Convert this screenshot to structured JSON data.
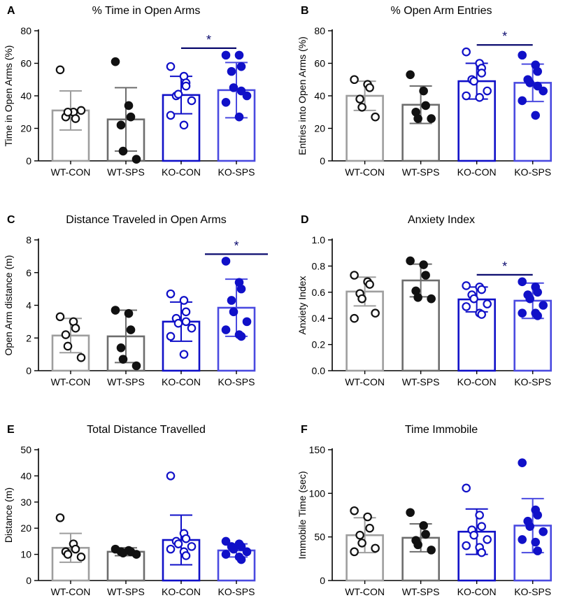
{
  "figure": {
    "categories": [
      "WT-CON",
      "WT-SPS",
      "KO-CON",
      "KO-SPS"
    ],
    "group_colors": [
      "#9e9e9e",
      "#6d6d6d",
      "#1010c8",
      "#4a4ae0"
    ],
    "dot_colors": [
      "#111111",
      "#111111",
      "#1010c8",
      "#1010c8"
    ],
    "dot_fill": [
      "open",
      "filled",
      "open",
      "filled"
    ],
    "sig_color": "#0a0a6e"
  },
  "chart_data": [
    {
      "panel": "A",
      "type": "bar",
      "title": "% Time in Open Arms",
      "ylabel": "Time in Open Arms (%)",
      "ylim": [
        0,
        80
      ],
      "yticks": [
        0,
        20,
        40,
        60,
        80
      ],
      "categories": [
        "WT-CON",
        "WT-SPS",
        "KO-CON",
        "KO-SPS"
      ],
      "means": [
        31,
        25.5,
        40.5,
        43.5
      ],
      "sd": [
        12,
        19.5,
        11.5,
        17
      ],
      "points": [
        [
          56,
          30,
          26,
          27,
          30,
          31
        ],
        [
          61,
          34,
          27,
          22,
          6,
          1
        ],
        [
          58,
          52,
          48,
          40,
          41,
          37,
          28,
          22,
          46
        ],
        [
          65,
          65,
          58,
          55,
          45,
          40,
          36,
          27,
          43
        ]
      ],
      "significance": {
        "from": 2,
        "to": 3,
        "label": "*"
      }
    },
    {
      "panel": "B",
      "type": "bar",
      "title": "% Open Arm Entries",
      "ylabel": "Entries into Open Arms (%)",
      "ylim": [
        0,
        80
      ],
      "yticks": [
        0,
        20,
        40,
        60,
        80
      ],
      "categories": [
        "WT-CON",
        "WT-SPS",
        "KO-CON",
        "KO-SPS"
      ],
      "means": [
        40,
        34.5,
        49,
        48
      ],
      "sd": [
        9,
        11.5,
        11,
        11.5
      ],
      "points": [
        [
          50,
          47,
          45,
          38,
          33,
          27
        ],
        [
          53,
          43,
          34,
          30,
          26,
          26
        ],
        [
          67,
          60,
          57,
          50,
          49,
          43,
          40,
          39,
          54
        ],
        [
          65,
          59,
          55,
          50,
          48,
          43,
          37,
          28,
          46
        ]
      ],
      "significance": {
        "from": 2,
        "to": 3,
        "label": "*"
      }
    },
    {
      "panel": "C",
      "type": "bar",
      "title": "Distance Traveled in Open Arms",
      "ylabel": "Open Arm distance  (m)",
      "ylim": [
        0,
        8
      ],
      "yticks": [
        0,
        2,
        4,
        6,
        8
      ],
      "categories": [
        "WT-CON",
        "WT-SPS",
        "KO-CON",
        "KO-SPS"
      ],
      "means": [
        2.15,
        2.1,
        3.0,
        3.85
      ],
      "sd": [
        1.05,
        1.6,
        1.2,
        1.75
      ],
      "points": [
        [
          3.3,
          3.0,
          2.6,
          2.2,
          1.5,
          0.8
        ],
        [
          3.7,
          3.5,
          2.5,
          1.4,
          0.7,
          0.3
        ],
        [
          4.7,
          4.3,
          3.6,
          3.2,
          2.9,
          2.6,
          2.1,
          1.0,
          3.0
        ],
        [
          6.7,
          5.4,
          5.0,
          4.3,
          3.6,
          3.0,
          2.5,
          2.2,
          2.1
        ]
      ],
      "significance": {
        "from": 3,
        "to": 3,
        "label": "*"
      }
    },
    {
      "panel": "D",
      "type": "bar",
      "title": "Anxiety Index",
      "ylabel": "Anxiety Index",
      "ylim": [
        0,
        1.0
      ],
      "yticks": [
        0.0,
        0.2,
        0.4,
        0.6,
        0.8,
        1.0
      ],
      "categories": [
        "WT-CON",
        "WT-SPS",
        "KO-CON",
        "KO-SPS"
      ],
      "means": [
        0.605,
        0.69,
        0.545,
        0.535
      ],
      "sd": [
        0.11,
        0.125,
        0.095,
        0.135
      ],
      "points": [
        [
          0.73,
          0.68,
          0.66,
          0.59,
          0.55,
          0.44,
          0.4
        ],
        [
          0.84,
          0.81,
          0.73,
          0.61,
          0.56,
          0.55
        ],
        [
          0.65,
          0.64,
          0.62,
          0.58,
          0.55,
          0.51,
          0.49,
          0.44,
          0.43
        ],
        [
          0.68,
          0.64,
          0.6,
          0.58,
          0.55,
          0.5,
          0.44,
          0.44,
          0.42
        ]
      ],
      "significance": {
        "from": 2,
        "to": 3,
        "label": "*"
      }
    },
    {
      "panel": "E",
      "type": "bar",
      "title": "Total Distance Travelled",
      "ylabel": "Distance (m)",
      "ylim": [
        0,
        50
      ],
      "yticks": [
        0,
        10,
        20,
        30,
        40,
        50
      ],
      "categories": [
        "WT-CON",
        "WT-SPS",
        "KO-CON",
        "KO-SPS"
      ],
      "means": [
        12.5,
        11,
        15.5,
        11.5
      ],
      "sd": [
        5.5,
        1.5,
        9.5,
        2.5
      ],
      "points": [
        [
          24,
          14,
          12,
          11,
          10,
          9
        ],
        [
          12,
          11.5,
          11,
          11,
          10.5,
          10
        ],
        [
          40,
          18,
          16,
          15,
          14,
          13,
          12,
          11,
          9.5
        ],
        [
          15,
          14,
          13,
          13,
          12,
          11,
          10,
          9,
          8
        ]
      ],
      "significance": null
    },
    {
      "panel": "F",
      "type": "bar",
      "title": "Time Immobile",
      "ylabel": "Immobile Time (sec)",
      "ylim": [
        0,
        150
      ],
      "yticks": [
        0,
        50,
        100,
        150
      ],
      "categories": [
        "WT-CON",
        "WT-SPS",
        "KO-CON",
        "KO-SPS"
      ],
      "means": [
        52,
        49,
        56,
        63
      ],
      "sd": [
        20,
        16,
        26,
        31
      ],
      "points": [
        [
          80,
          73,
          60,
          52,
          43,
          37,
          33
        ],
        [
          78,
          63,
          53,
          46,
          41,
          35
        ],
        [
          106,
          75,
          62,
          58,
          52,
          47,
          40,
          38,
          32
        ],
        [
          135,
          81,
          75,
          68,
          62,
          56,
          47,
          44,
          34
        ]
      ],
      "significance": null
    }
  ]
}
